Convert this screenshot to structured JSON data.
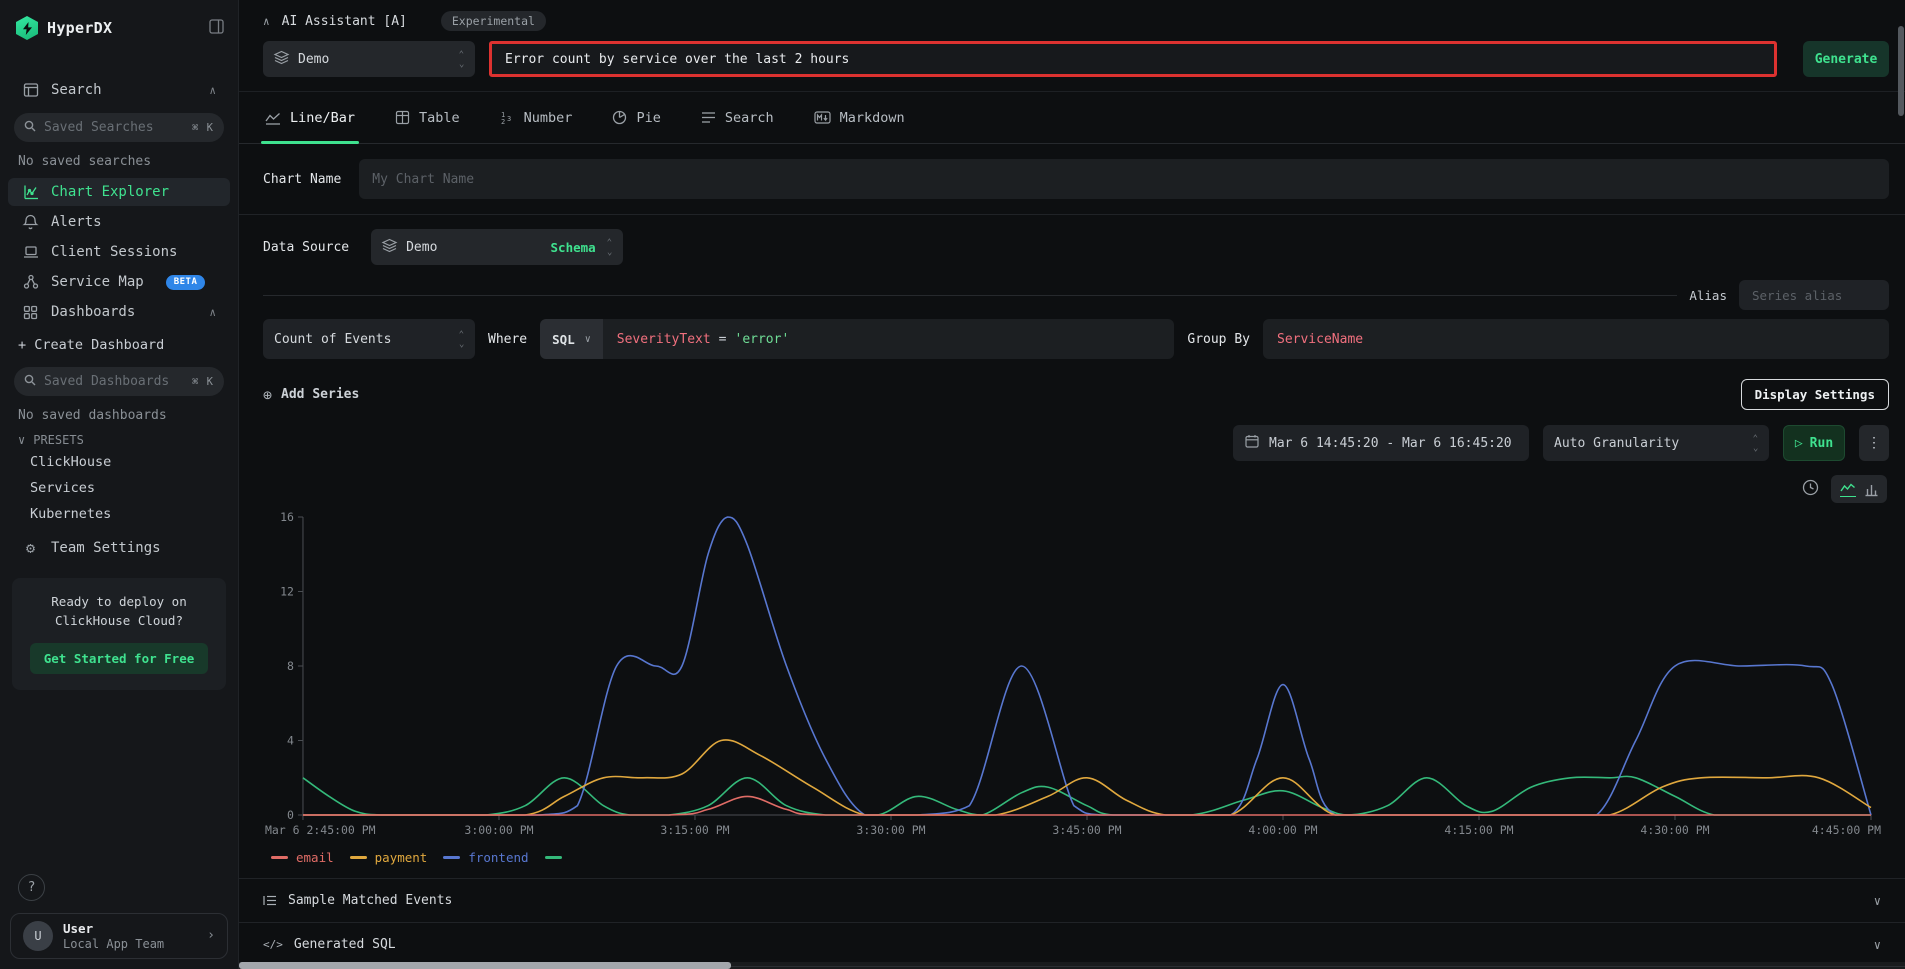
{
  "sidebar": {
    "logo": "HyperDX",
    "items": {
      "search": "Search",
      "chart_explorer": "Chart Explorer",
      "alerts": "Alerts",
      "client_sessions": "Client Sessions",
      "service_map": "Service Map",
      "beta_badge": "BETA",
      "dashboards": "Dashboards",
      "create_dashboard": "+ Create Dashboard",
      "team_settings": "Team Settings"
    },
    "saved_searches_placeholder": "Saved Searches",
    "saved_searches_shortcut": "⌘ K",
    "no_saved_searches": "No saved searches",
    "saved_dashboards_placeholder": "Saved Dashboards",
    "saved_dashboards_shortcut": "⌘ K",
    "no_saved_dashboards": "No saved dashboards",
    "presets_label": "PRESETS",
    "presets": [
      "ClickHouse",
      "Services",
      "Kubernetes"
    ],
    "promo_text": "Ready to deploy on ClickHouse Cloud?",
    "promo_button": "Get Started for Free",
    "help_glyph": "?",
    "user": {
      "avatar": "U",
      "name": "User",
      "team": "Local App Team"
    }
  },
  "ai": {
    "title": "AI Assistant [A]",
    "badge": "Experimental",
    "source": "Demo",
    "prompt": "Error count by service over the last 2 hours",
    "generate": "Generate",
    "highlight_color": "#dd3230"
  },
  "tabs": [
    {
      "label": "Line/Bar"
    },
    {
      "label": "Table"
    },
    {
      "label": "Number"
    },
    {
      "label": "Pie"
    },
    {
      "label": "Search"
    },
    {
      "label": "Markdown"
    }
  ],
  "form": {
    "chart_name_label": "Chart Name",
    "chart_name_placeholder": "My Chart Name",
    "data_source_label": "Data Source",
    "data_source_value": "Demo",
    "schema_label": "Schema",
    "alias_label": "Alias",
    "alias_placeholder": "Series alias",
    "aggregation": "Count of Events",
    "where_label": "Where",
    "language": "SQL",
    "where_field": "SeverityText",
    "where_operator": "=",
    "where_value": "'error'",
    "group_by_label": "Group By",
    "group_by_value": "ServiceName",
    "add_series": "Add Series",
    "display_settings": "Display Settings"
  },
  "toolbar": {
    "time_range": "Mar 6 14:45:20 - Mar 6 16:45:20",
    "granularity": "Auto Granularity",
    "run": "Run",
    "run_icon": "▷",
    "accent": "#3fe28f"
  },
  "sections": {
    "sample_events": "Sample Matched Events",
    "generated_sql": "Generated SQL"
  },
  "chart_data": {
    "type": "line",
    "title": "",
    "grid": false,
    "legend_position": "bottom-left",
    "x_axis": {
      "unit": "time",
      "range_minutes": [
        0,
        120
      ],
      "tick_interval_minutes": 15,
      "tick_labels": [
        "Mar 6 2:45:00 PM",
        "3:00:00 PM",
        "3:15:00 PM",
        "3:30:00 PM",
        "3:45:00 PM",
        "4:00:00 PM",
        "4:15:00 PM",
        "4:30:00 PM",
        "4:45:00 PM"
      ]
    },
    "y_axis": {
      "min": 0,
      "max": 16,
      "ticks": [
        0,
        4,
        8,
        12,
        16
      ]
    },
    "series": [
      {
        "name": "email",
        "color": "#e06c66",
        "points": [
          [
            0,
            0
          ],
          [
            15,
            0
          ],
          [
            28,
            0
          ],
          [
            31,
            0.3
          ],
          [
            34,
            1
          ],
          [
            37,
            0.3
          ],
          [
            40,
            0
          ],
          [
            55,
            0
          ],
          [
            70,
            0
          ],
          [
            85,
            0
          ],
          [
            100,
            0
          ],
          [
            110,
            0
          ],
          [
            120,
            0
          ]
        ]
      },
      {
        "name": "payment",
        "color": "#e0a83e",
        "points": [
          [
            0,
            0
          ],
          [
            10,
            0
          ],
          [
            17,
            0
          ],
          [
            20,
            1
          ],
          [
            23,
            2
          ],
          [
            26,
            2
          ],
          [
            29,
            2.2
          ],
          [
            32,
            4
          ],
          [
            35,
            3.2
          ],
          [
            39,
            1.5
          ],
          [
            43,
            0
          ],
          [
            48,
            0
          ],
          [
            53,
            0
          ],
          [
            57,
            1
          ],
          [
            60,
            2
          ],
          [
            63,
            0.8
          ],
          [
            66,
            0
          ],
          [
            71,
            0
          ],
          [
            75,
            2
          ],
          [
            79,
            0
          ],
          [
            85,
            0
          ],
          [
            95,
            0
          ],
          [
            100,
            0
          ],
          [
            104,
            1.5
          ],
          [
            107,
            2
          ],
          [
            112,
            2
          ],
          [
            116,
            2
          ],
          [
            120,
            0.4
          ]
        ]
      },
      {
        "name": "frontend",
        "color": "#5877d0",
        "points": [
          [
            0,
            0
          ],
          [
            10,
            0
          ],
          [
            18,
            0
          ],
          [
            21,
            0.5
          ],
          [
            24,
            8
          ],
          [
            27,
            8
          ],
          [
            29,
            8
          ],
          [
            31,
            14
          ],
          [
            32.5,
            16
          ],
          [
            34,
            14.5
          ],
          [
            37,
            8
          ],
          [
            40,
            3
          ],
          [
            43,
            0
          ],
          [
            47,
            0
          ],
          [
            51,
            0.5
          ],
          [
            55,
            8
          ],
          [
            59,
            0.5
          ],
          [
            61,
            0
          ],
          [
            66,
            0
          ],
          [
            71,
            0
          ],
          [
            73,
            3
          ],
          [
            75,
            7
          ],
          [
            77,
            3
          ],
          [
            79,
            0
          ],
          [
            85,
            0
          ],
          [
            95,
            0
          ],
          [
            99,
            0
          ],
          [
            102,
            4
          ],
          [
            105,
            8
          ],
          [
            110,
            8
          ],
          [
            115,
            8
          ],
          [
            117,
            7
          ],
          [
            120,
            0
          ]
        ]
      },
      {
        "name": "",
        "color": "#34b97a",
        "points": [
          [
            0,
            2
          ],
          [
            2,
            1
          ],
          [
            4,
            0.2
          ],
          [
            6,
            0
          ],
          [
            10,
            0
          ],
          [
            14,
            0
          ],
          [
            17,
            0.5
          ],
          [
            20,
            2
          ],
          [
            23,
            0.5
          ],
          [
            25,
            0
          ],
          [
            28,
            0
          ],
          [
            31,
            0.5
          ],
          [
            34,
            2
          ],
          [
            37,
            0.5
          ],
          [
            40,
            0
          ],
          [
            44,
            0
          ],
          [
            47,
            1
          ],
          [
            50,
            0.3
          ],
          [
            52,
            0
          ],
          [
            55,
            1.2
          ],
          [
            57,
            1.5
          ],
          [
            60,
            0.5
          ],
          [
            62,
            0
          ],
          [
            68,
            0
          ],
          [
            72,
            0.8
          ],
          [
            75,
            1.3
          ],
          [
            78,
            0.4
          ],
          [
            80,
            0
          ],
          [
            83,
            0.5
          ],
          [
            86,
            2
          ],
          [
            89,
            0.5
          ],
          [
            91,
            0.2
          ],
          [
            94,
            1.5
          ],
          [
            97,
            2
          ],
          [
            100,
            2
          ],
          [
            102,
            2
          ],
          [
            105,
            1
          ],
          [
            108,
            0
          ],
          [
            112,
            0
          ],
          [
            116,
            0
          ],
          [
            120,
            0
          ]
        ]
      }
    ]
  }
}
